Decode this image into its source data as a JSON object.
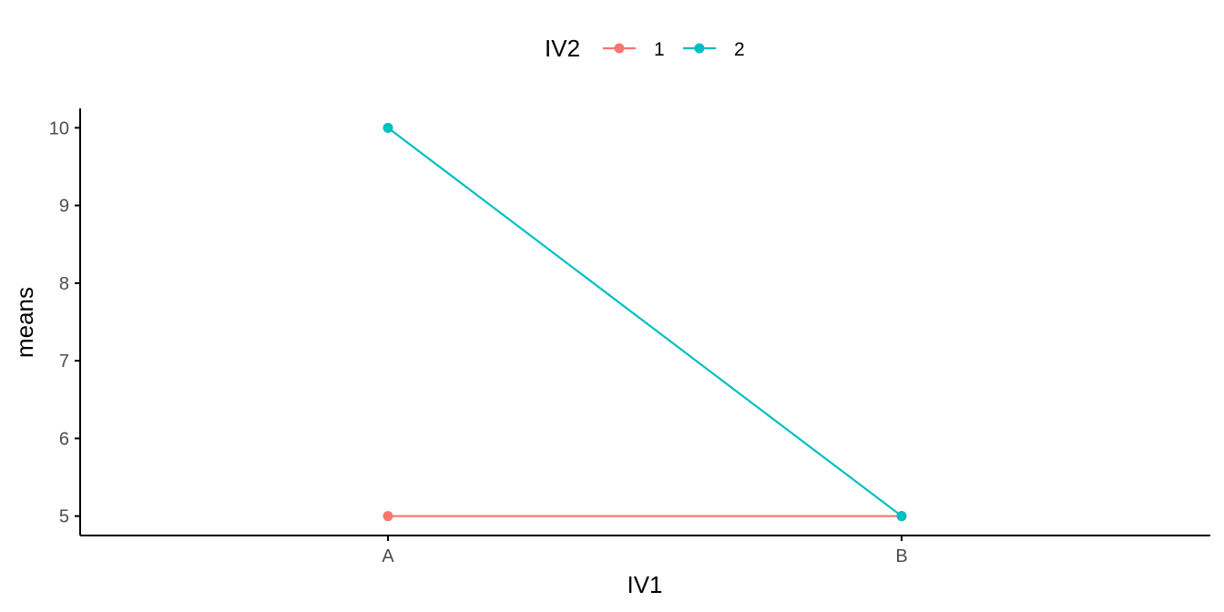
{
  "chart_data": {
    "type": "line",
    "categories": [
      "A",
      "B"
    ],
    "series": [
      {
        "name": "1",
        "values": [
          5,
          5
        ],
        "color": "#F8766D"
      },
      {
        "name": "2",
        "values": [
          10,
          5
        ],
        "color": "#00BFC4"
      }
    ],
    "xlabel": "IV1",
    "ylabel": "means",
    "ylim": [
      4.75,
      10.25
    ],
    "yticks": [
      5,
      6,
      7,
      8,
      9,
      10
    ],
    "grid": false,
    "legend": {
      "title": "IV2",
      "position": "top"
    }
  }
}
